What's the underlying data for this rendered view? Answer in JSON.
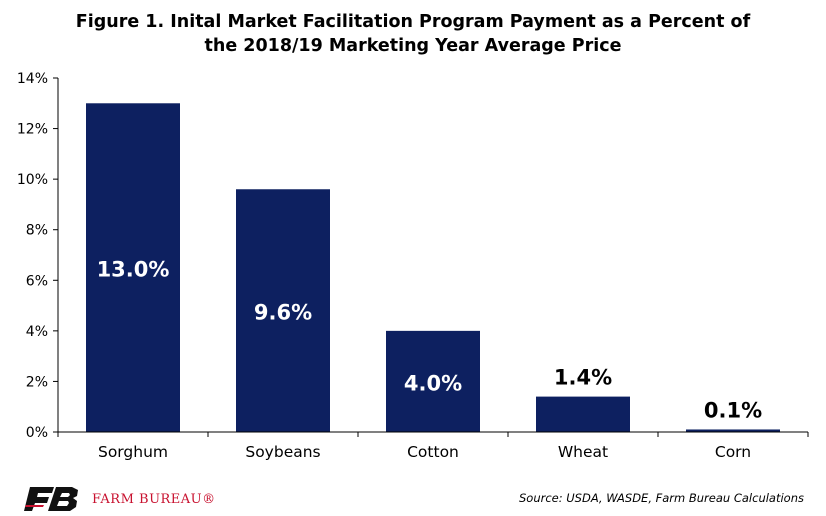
{
  "chart_data": {
    "type": "bar",
    "title_lines": [
      "Figure 1. Inital Market Facilitation Program Payment as a Percent of",
      "the 2018/19 Marketing Year Average Price"
    ],
    "categories": [
      "Sorghum",
      "Soybeans",
      "Cotton",
      "Wheat",
      "Corn"
    ],
    "values": [
      13.0,
      9.6,
      4.0,
      1.4,
      0.1
    ],
    "data_labels": [
      "13.0%",
      "9.6%",
      "4.0%",
      "1.4%",
      "0.1%"
    ],
    "xlabel": "",
    "ylabel": "",
    "ylim": [
      0,
      14
    ],
    "yticks": [
      0,
      2,
      4,
      6,
      8,
      10,
      12,
      14
    ],
    "ytick_labels": [
      "0%",
      "2%",
      "4%",
      "6%",
      "8%",
      "10%",
      "12%",
      "14%"
    ],
    "grid": false,
    "legend": "none",
    "bar_color": "#0d2060",
    "inside_label_color": "#ffffff",
    "outside_label_color": "#000000"
  },
  "footer": {
    "logo_text": "FARM BUREAU®",
    "logo_color": "#c8102e",
    "source": "Source: USDA, WASDE, Farm Bureau Calculations"
  }
}
